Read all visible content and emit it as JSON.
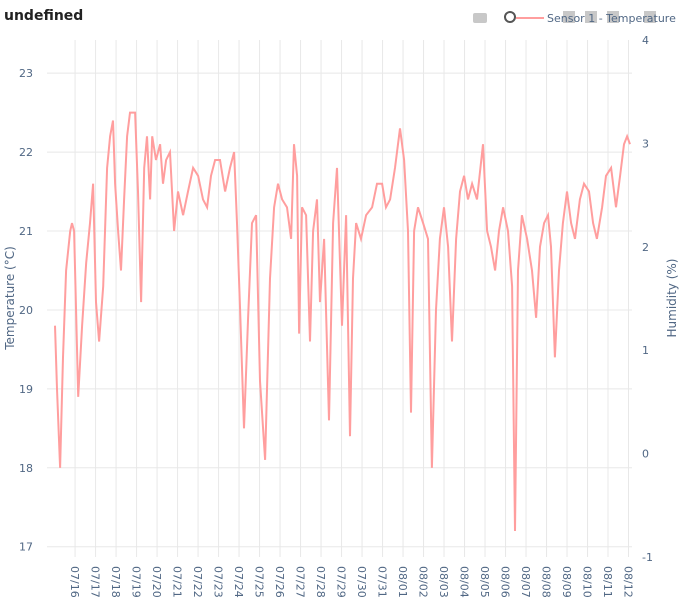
{
  "chart_data": {
    "type": "line",
    "title": "undefined",
    "y_label": "Temperature (°C)",
    "y2_label": "Humidity (%)",
    "x": [
      -0.98,
      -0.88,
      -0.73,
      -0.59,
      -0.44,
      -0.24,
      -0.15,
      -0.05,
      0.15,
      0.34,
      0.54,
      0.73,
      0.88,
      1.02,
      1.17,
      1.37,
      1.56,
      1.71,
      1.85,
      1.95,
      2.1,
      2.24,
      2.39,
      2.54,
      2.68,
      2.93,
      3.07,
      3.22,
      3.37,
      3.51,
      3.66,
      3.76,
      3.95,
      4.15,
      4.29,
      4.44,
      4.63,
      4.83,
      5.02,
      5.27,
      5.51,
      5.76,
      6,
      6.24,
      6.44,
      6.63,
      6.83,
      7.07,
      7.32,
      7.56,
      7.76,
      7.9,
      8.05,
      8.24,
      8.44,
      8.63,
      8.83,
      9.02,
      9.27,
      9.51,
      9.71,
      9.9,
      10.1,
      10.34,
      10.54,
      10.68,
      10.83,
      10.93,
      11.07,
      11.27,
      11.46,
      11.61,
      11.8,
      11.95,
      12.15,
      12.39,
      12.59,
      12.78,
      13.02,
      13.22,
      13.41,
      13.56,
      13.71,
      13.95,
      14.2,
      14.49,
      14.73,
      14.98,
      15.17,
      15.37,
      15.61,
      15.85,
      16.05,
      16.24,
      16.39,
      16.54,
      16.73,
      16.98,
      17.22,
      17.41,
      17.61,
      17.8,
      18,
      18.2,
      18.39,
      18.59,
      18.78,
      18.98,
      19.17,
      19.37,
      19.61,
      19.9,
      20.1,
      20.29,
      20.49,
      20.68,
      20.88,
      21.12,
      21.32,
      21.46,
      21.61,
      21.8,
      22.05,
      22.29,
      22.49,
      22.68,
      22.88,
      23.07,
      23.22,
      23.41,
      23.61,
      23.8,
      24,
      24.2,
      24.39,
      24.63,
      24.83,
      25.07,
      25.27,
      25.46,
      25.71,
      25.9,
      26.15,
      26.39,
      26.59,
      26.78,
      26.93,
      27.07
    ],
    "series": [
      {
        "name": "Sensor 1 - Temperature",
        "color": "#ff9e9e",
        "values": [
          19.8,
          19.0,
          18.0,
          19.4,
          20.5,
          21.0,
          21.1,
          21.0,
          18.9,
          19.8,
          20.6,
          21.1,
          21.6,
          20.1,
          19.6,
          20.3,
          21.8,
          22.2,
          22.4,
          21.6,
          21.0,
          20.5,
          21.4,
          22.2,
          22.5,
          22.5,
          21.5,
          20.1,
          21.8,
          22.2,
          21.4,
          22.2,
          21.9,
          22.1,
          21.6,
          21.9,
          22.0,
          21.0,
          21.5,
          21.2,
          21.5,
          21.8,
          21.7,
          21.4,
          21.3,
          21.7,
          21.9,
          21.9,
          21.5,
          21.8,
          22.0,
          21.1,
          20.0,
          18.5,
          19.9,
          21.1,
          21.2,
          19.1,
          18.1,
          20.4,
          21.3,
          21.6,
          21.4,
          21.3,
          20.9,
          22.1,
          21.7,
          19.7,
          21.3,
          21.2,
          19.6,
          21.0,
          21.4,
          20.1,
          20.9,
          18.6,
          21.1,
          21.8,
          19.8,
          21.2,
          18.4,
          20.4,
          21.1,
          20.9,
          21.2,
          21.3,
          21.6,
          21.6,
          21.3,
          21.4,
          21.8,
          22.3,
          21.9,
          21.0,
          18.7,
          21.0,
          21.3,
          21.1,
          20.9,
          18.0,
          20.0,
          20.9,
          21.3,
          20.8,
          19.6,
          20.9,
          21.5,
          21.7,
          21.4,
          21.6,
          21.4,
          22.1,
          21.0,
          20.8,
          20.5,
          21.0,
          21.3,
          21.0,
          20.3,
          17.2,
          20.5,
          21.2,
          20.9,
          20.5,
          19.9,
          20.8,
          21.1,
          21.2,
          20.8,
          19.4,
          20.5,
          21.1,
          21.5,
          21.1,
          20.9,
          21.4,
          21.6,
          21.5,
          21.1,
          20.9,
          21.3,
          21.7,
          21.8,
          21.3,
          21.7,
          22.1,
          22.2,
          22.1
        ]
      }
    ],
    "xlim": [
      -1.37,
      27.17
    ],
    "xticks": [
      {
        "value": 0,
        "label": "07/16"
      },
      {
        "value": 1,
        "label": "07/17"
      },
      {
        "value": 2,
        "label": "07/18"
      },
      {
        "value": 3,
        "label": "07/19"
      },
      {
        "value": 4,
        "label": "07/20"
      },
      {
        "value": 5,
        "label": "07/21"
      },
      {
        "value": 6,
        "label": "07/22"
      },
      {
        "value": 7,
        "label": "07/23"
      },
      {
        "value": 8,
        "label": "07/24"
      },
      {
        "value": 9,
        "label": "07/25"
      },
      {
        "value": 10,
        "label": "07/26"
      },
      {
        "value": 11,
        "label": "07/27"
      },
      {
        "value": 12,
        "label": "07/28"
      },
      {
        "value": 13,
        "label": "07/29"
      },
      {
        "value": 14,
        "label": "07/30"
      },
      {
        "value": 15,
        "label": "07/31"
      },
      {
        "value": 16,
        "label": "08/01"
      },
      {
        "value": 17,
        "label": "08/02"
      },
      {
        "value": 18,
        "label": "08/03"
      },
      {
        "value": 19,
        "label": "08/04"
      },
      {
        "value": 20,
        "label": "08/05"
      },
      {
        "value": 21,
        "label": "08/06"
      },
      {
        "value": 22,
        "label": "08/07"
      },
      {
        "value": 23,
        "label": "08/08"
      },
      {
        "value": 24,
        "label": "08/09"
      },
      {
        "value": 25,
        "label": "08/10"
      },
      {
        "value": 26,
        "label": "08/11"
      },
      {
        "value": 27,
        "label": "08/12"
      }
    ],
    "ylim": [
      16.87,
      23.42
    ],
    "yticks": [
      17,
      18,
      19,
      20,
      21,
      22,
      23
    ],
    "y2lim": [
      -1,
      4
    ],
    "y2ticks": [
      -1,
      0,
      1,
      2,
      3,
      4
    ],
    "grid": true,
    "legend": "top-right"
  }
}
